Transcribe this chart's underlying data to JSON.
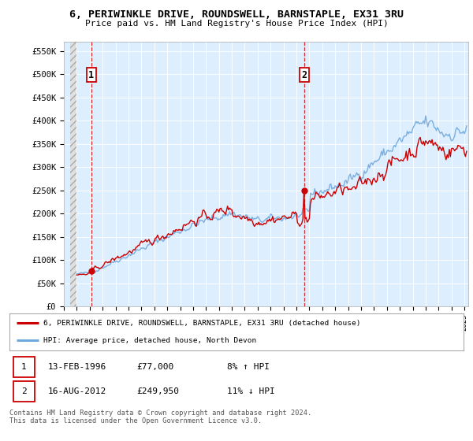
{
  "title_line1": "6, PERIWINKLE DRIVE, ROUNDSWELL, BARNSTAPLE, EX31 3RU",
  "title_line2": "Price paid vs. HM Land Registry's House Price Index (HPI)",
  "ylabel_ticks": [
    "£0",
    "£50K",
    "£100K",
    "£150K",
    "£200K",
    "£250K",
    "£300K",
    "£350K",
    "£400K",
    "£450K",
    "£500K",
    "£550K"
  ],
  "ytick_values": [
    0,
    50000,
    100000,
    150000,
    200000,
    250000,
    300000,
    350000,
    400000,
    450000,
    500000,
    550000
  ],
  "sale1": {
    "date_num": 1996.12,
    "price": 77000,
    "label": "1"
  },
  "sale2": {
    "date_num": 2012.62,
    "price": 249950,
    "label": "2"
  },
  "legend_line1": "6, PERIWINKLE DRIVE, ROUNDSWELL, BARNSTAPLE, EX31 3RU (detached house)",
  "legend_line2": "HPI: Average price, detached house, North Devon",
  "table_row1": [
    "1",
    "13-FEB-1996",
    "£77,000",
    "8% ↑ HPI"
  ],
  "table_row2": [
    "2",
    "16-AUG-2012",
    "£249,950",
    "11% ↓ HPI"
  ],
  "footnote": "Contains HM Land Registry data © Crown copyright and database right 2024.\nThis data is licensed under the Open Government Licence v3.0.",
  "hpi_color": "#6fa8dc",
  "price_color": "#cc0000",
  "dashed_color": "#cc0000",
  "plot_bg_color": "#ddeeff",
  "hatch_color": "#d8d8d8",
  "grid_color": "#ffffff",
  "xmin": 1994.5,
  "xmax": 2025.3,
  "ymin": 0,
  "ymax": 570000
}
